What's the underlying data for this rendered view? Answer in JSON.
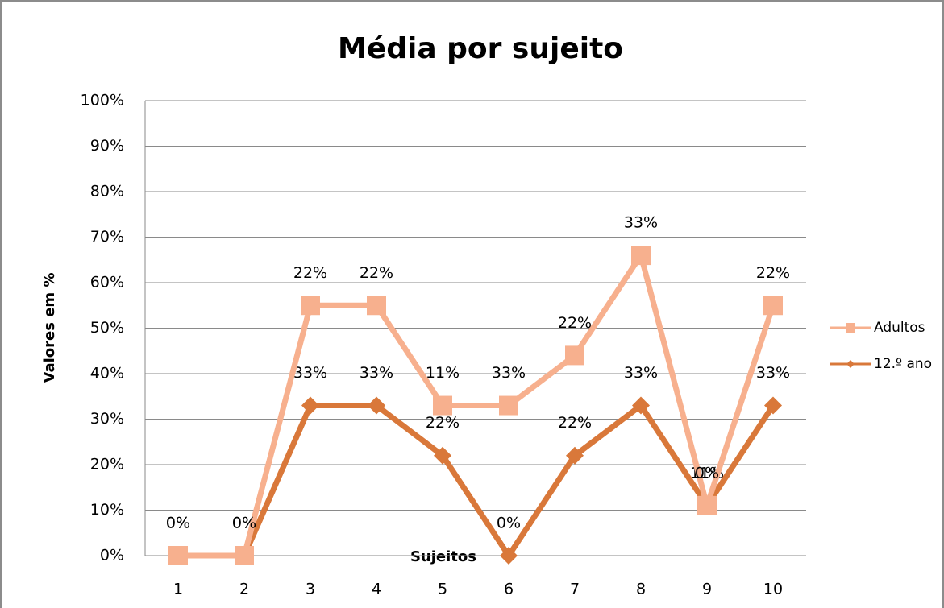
{
  "chart_data": {
    "type": "line",
    "stacked": true,
    "title": "Média por sujeito",
    "x_label": "Sujeitos",
    "y_label": "Valores em %",
    "categories": [
      "1",
      "2",
      "3",
      "4",
      "5",
      "6",
      "7",
      "8",
      "9",
      "10"
    ],
    "series": [
      {
        "name": "12.º ano",
        "color": "#d9783a",
        "marker": "diamond",
        "values": [
          0,
          0,
          33,
          33,
          22,
          0,
          22,
          33,
          11,
          33
        ],
        "value_labels": [
          "0%",
          "0%",
          "33%",
          "33%",
          "22%",
          "0%",
          "22%",
          "33%",
          "11%",
          "33%"
        ]
      },
      {
        "name": "Adultos",
        "color": "#f7b08e",
        "marker": "square",
        "values": [
          0,
          0,
          22,
          22,
          11,
          33,
          22,
          33,
          0,
          22
        ],
        "value_labels": [
          "0%",
          "0%",
          "22%",
          "22%",
          "11%",
          "33%",
          "22%",
          "33%",
          "0%",
          "22%"
        ]
      }
    ],
    "ylim": [
      0,
      100
    ],
    "yticks": [
      {
        "value": 0,
        "label": "0%"
      },
      {
        "value": 10,
        "label": "10%"
      },
      {
        "value": 20,
        "label": "20%"
      },
      {
        "value": 30,
        "label": "30%"
      },
      {
        "value": 40,
        "label": "40%"
      },
      {
        "value": 50,
        "label": "50%"
      },
      {
        "value": 60,
        "label": "60%"
      },
      {
        "value": 70,
        "label": "70%"
      },
      {
        "value": 80,
        "label": "80%"
      },
      {
        "value": 90,
        "label": "90%"
      },
      {
        "value": 100,
        "label": "100%"
      }
    ],
    "grid": true,
    "legend": "right"
  }
}
